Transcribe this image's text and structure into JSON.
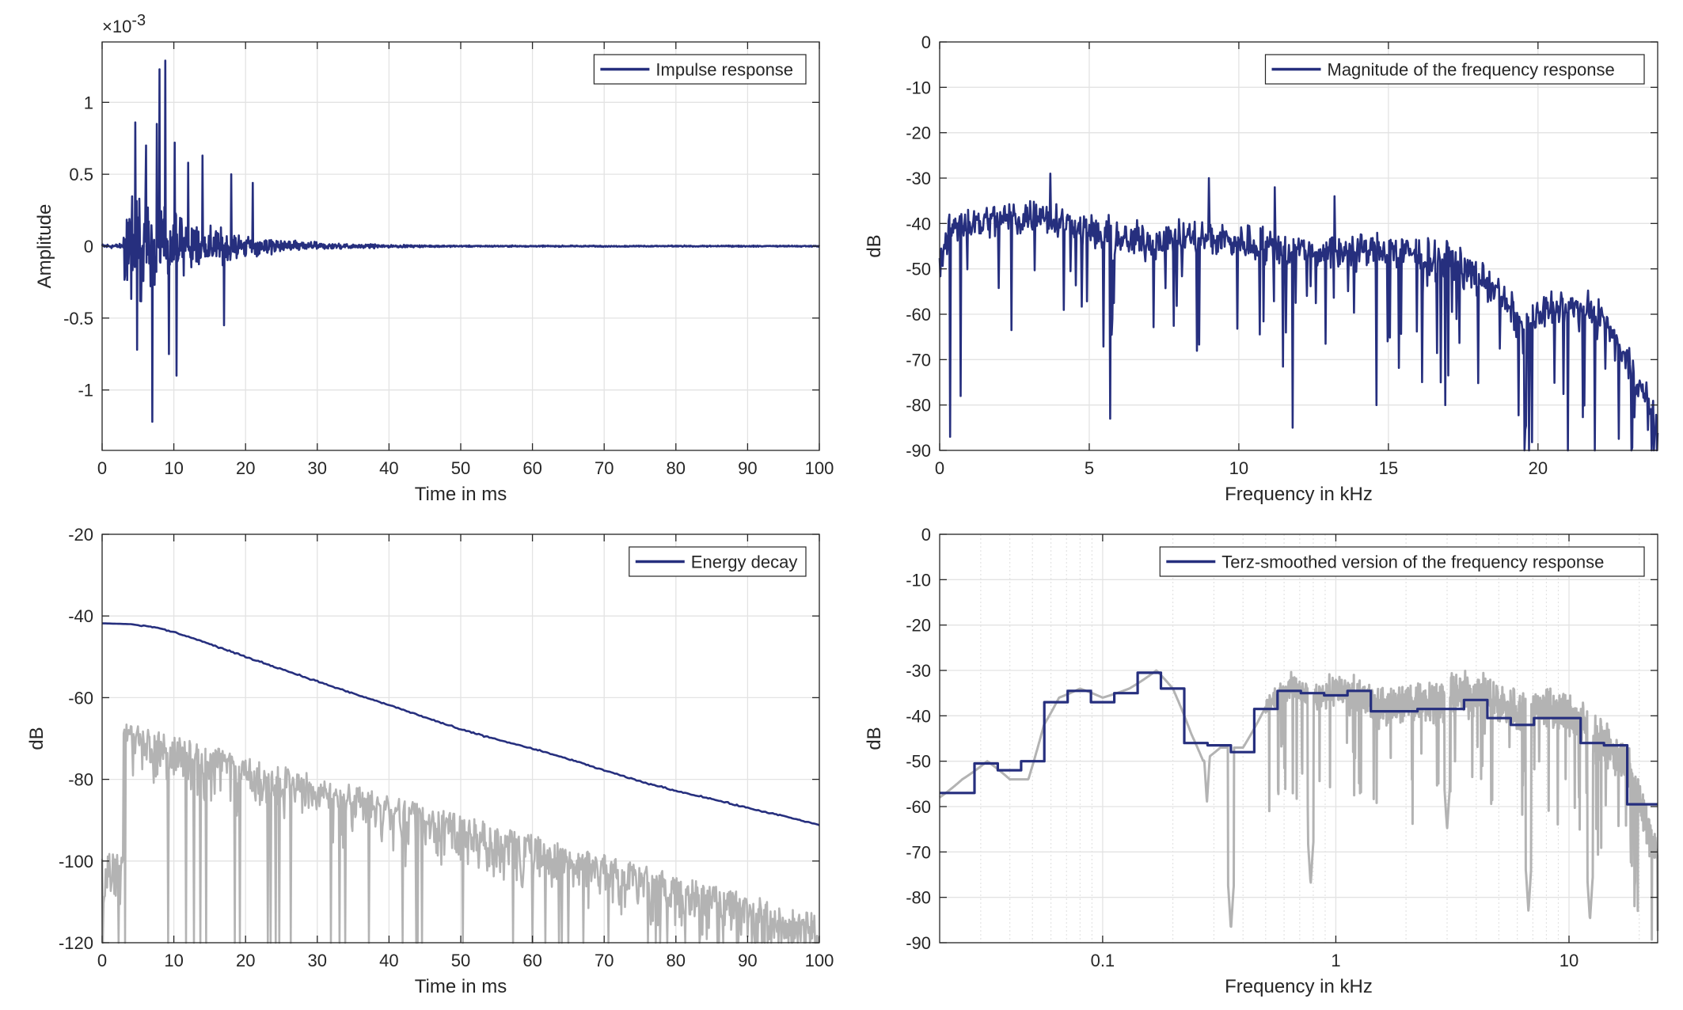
{
  "colors": {
    "series_main": "#262F7E",
    "series_gray": "#B3B3B3",
    "grid": "#E3E3E3",
    "axis": "#262626"
  },
  "chart_data": [
    {
      "id": "impulse",
      "type": "line",
      "xlabel": "Time in ms",
      "ylabel": "Amplitude",
      "exponent": "-3",
      "exponent_prefix": "×10",
      "xlim": [
        0,
        100
      ],
      "ylim": [
        -1.42,
        1.42
      ],
      "xticks": [
        0,
        10,
        20,
        30,
        40,
        50,
        60,
        70,
        80,
        90,
        100
      ],
      "xtick_labels": [
        "0",
        "10",
        "20",
        "30",
        "40",
        "50",
        "60",
        "70",
        "80",
        "90",
        "100"
      ],
      "yticks": [
        -1,
        -0.5,
        0,
        0.5,
        1
      ],
      "ytick_labels": [
        "-1",
        "-0.5",
        "0",
        "0.5",
        "1"
      ],
      "grid": true,
      "legend_position": "top-right",
      "series": [
        {
          "name": "Impulse response",
          "color": "main",
          "samples_per_ms": 16,
          "onset_ms": 3.0,
          "decay_ms": 9.5,
          "peak_amplitude": 0.5,
          "noise_floor": 0.015,
          "spikes": [
            [
              4.6,
              0.86
            ],
            [
              4.9,
              -0.72
            ],
            [
              5.2,
              0.33
            ],
            [
              6.1,
              0.7
            ],
            [
              7.0,
              -1.22
            ],
            [
              7.6,
              0.85
            ],
            [
              8.0,
              1.23
            ],
            [
              8.8,
              1.29
            ],
            [
              9.3,
              -0.75
            ],
            [
              10.1,
              0.72
            ],
            [
              10.4,
              -0.9
            ],
            [
              12.0,
              0.58
            ],
            [
              14.0,
              0.63
            ],
            [
              17.0,
              -0.55
            ],
            [
              18.0,
              0.5
            ],
            [
              21.0,
              0.44
            ]
          ]
        }
      ]
    },
    {
      "id": "magnitude",
      "type": "line",
      "xlabel": "Frequency in kHz",
      "ylabel": "dB",
      "xlim": [
        0,
        24
      ],
      "ylim": [
        -90,
        0
      ],
      "xticks": [
        0,
        5,
        10,
        15,
        20
      ],
      "xtick_labels": [
        "0",
        "5",
        "10",
        "15",
        "20"
      ],
      "yticks": [
        0,
        -10,
        -20,
        -30,
        -40,
        -50,
        -60,
        -70,
        -80,
        -90
      ],
      "ytick_labels": [
        "0",
        "-10",
        "-20",
        "-30",
        "-40",
        "-50",
        "-60",
        "-70",
        "-80",
        "-90"
      ],
      "grid": true,
      "legend_position": "top-right",
      "series": [
        {
          "name": "Magnitude of the frequency response",
          "color": "main",
          "points_per_khz": 40,
          "envelope_khz": [
            0,
            0.5,
            1,
            3.5,
            6,
            9,
            12,
            15,
            17,
            18.5,
            19.5,
            20.5,
            22,
            23,
            24
          ],
          "envelope_db": [
            -48,
            -40,
            -40,
            -38,
            -44,
            -43,
            -46,
            -46,
            -48,
            -54,
            -63,
            -58,
            -60,
            -70,
            -85
          ],
          "dips": [
            [
              0.35,
              -87
            ],
            [
              0.7,
              -78
            ],
            [
              5.7,
              -83
            ],
            [
              11.8,
              -85
            ],
            [
              14.6,
              -80
            ],
            [
              16.9,
              -80
            ],
            [
              19.7,
              -90
            ],
            [
              21.0,
              -90
            ],
            [
              21.9,
              -90
            ],
            [
              23.8,
              -90
            ]
          ],
          "peaks": [
            [
              3.7,
              -29
            ],
            [
              9.0,
              -30
            ],
            [
              11.2,
              -32
            ],
            [
              13.2,
              -34
            ]
          ]
        }
      ]
    },
    {
      "id": "energy",
      "type": "line",
      "xlabel": "Time in ms",
      "ylabel": "dB",
      "xlim": [
        0,
        100
      ],
      "ylim": [
        -120,
        -20
      ],
      "xticks": [
        0,
        10,
        20,
        30,
        40,
        50,
        60,
        70,
        80,
        90,
        100
      ],
      "xtick_labels": [
        "0",
        "10",
        "20",
        "30",
        "40",
        "50",
        "60",
        "70",
        "80",
        "90",
        "100"
      ],
      "yticks": [
        -20,
        -40,
        -60,
        -80,
        -100,
        -120
      ],
      "ytick_labels": [
        "-20",
        "-40",
        "-60",
        "-80",
        "-100",
        "-120"
      ],
      "grid": true,
      "legend_position": "top-right",
      "series": [
        {
          "name": "Energy decay",
          "color": "main",
          "x": [
            0,
            4,
            8,
            12,
            16,
            20,
            25,
            30,
            35,
            40,
            45,
            50,
            55,
            60,
            65,
            70,
            75,
            80,
            85,
            90,
            95,
            100
          ],
          "y": [
            -41.8,
            -42.0,
            -43.0,
            -45.0,
            -47.5,
            -50.0,
            -53.0,
            -56.0,
            -59.0,
            -61.8,
            -64.8,
            -67.8,
            -70.2,
            -72.5,
            -75.0,
            -77.8,
            -80.5,
            -82.8,
            -84.8,
            -87.0,
            -89.0,
            -91.2
          ]
        },
        {
          "name": "",
          "color": "gray",
          "samples_per_ms": 10,
          "onset_ms": 3.0,
          "level_at_onset": -66,
          "level_at_end": -113,
          "pre_onset_level": -98
        }
      ]
    },
    {
      "id": "terz",
      "type": "line",
      "xlabel": "Frequency in kHz",
      "ylabel": "dB",
      "x_scale": "log",
      "xlim": [
        0.02,
        24
      ],
      "ylim": [
        -90,
        0
      ],
      "xticks": [
        0.1,
        1,
        10
      ],
      "xtick_labels": [
        "0.1",
        "1",
        "10"
      ],
      "yticks": [
        0,
        -10,
        -20,
        -30,
        -40,
        -50,
        -60,
        -70,
        -80,
        -90
      ],
      "ytick_labels": [
        "0",
        "-10",
        "-20",
        "-30",
        "-40",
        "-50",
        "-60",
        "-70",
        "-80",
        "-90"
      ],
      "grid": true,
      "minor_grid": true,
      "legend_position": "top-right",
      "series": [
        {
          "name": "Terz-smoothed version of the frequency response",
          "color": "main",
          "band_edges_khz": [
            0.02,
            0.0224,
            0.0282,
            0.0355,
            0.0447,
            0.0562,
            0.0708,
            0.0891,
            0.1122,
            0.1413,
            0.1778,
            0.2239,
            0.2818,
            0.3548,
            0.4467,
            0.5623,
            0.7079,
            0.8913,
            1.122,
            1.413,
            1.778,
            2.239,
            2.818,
            3.548,
            4.467,
            5.623,
            7.079,
            8.913,
            11.22,
            14.13,
            17.78,
            24
          ],
          "band_db": [
            -57,
            -57,
            -50.5,
            -52,
            -50,
            -37,
            -34.5,
            -37,
            -35,
            -30.5,
            -34,
            -46,
            -46.5,
            -48,
            -38.5,
            -34.5,
            -35,
            -35.5,
            -34.5,
            -39,
            -39,
            -38.5,
            -38.5,
            -36.5,
            -40.5,
            -42,
            -40.5,
            -40.5,
            -46,
            -46.5,
            -59.5
          ]
        },
        {
          "name": "",
          "color": "gray",
          "anchors_khz": [
            0.02,
            0.025,
            0.032,
            0.04,
            0.048,
            0.056,
            0.065,
            0.08,
            0.1,
            0.13,
            0.17,
            0.2,
            0.24,
            0.27,
            0.32,
            0.4,
            0.5,
            0.65,
            0.8,
            1.0,
            1.5,
            2.0,
            3.0,
            4.0,
            6.0,
            8.0,
            10.0,
            14.0,
            18.0,
            24.0
          ],
          "anchors_db": [
            -58,
            -54,
            -50,
            -54,
            -54,
            -42,
            -36,
            -34,
            -36,
            -34,
            -30,
            -34,
            -44,
            -50,
            -47,
            -47,
            -38,
            -33,
            -36,
            -34,
            -38,
            -37,
            -36,
            -35,
            -39,
            -38,
            -40,
            -46,
            -52,
            -72
          ],
          "dips": [
            [
              0.28,
              -59
            ],
            [
              0.355,
              -87
            ],
            [
              0.78,
              -77
            ],
            [
              3.0,
              -65
            ],
            [
              6.7,
              -83
            ],
            [
              12.3,
              -85
            ]
          ],
          "roughness_from_khz": 0.5,
          "roughness_db": 7
        }
      ]
    }
  ]
}
